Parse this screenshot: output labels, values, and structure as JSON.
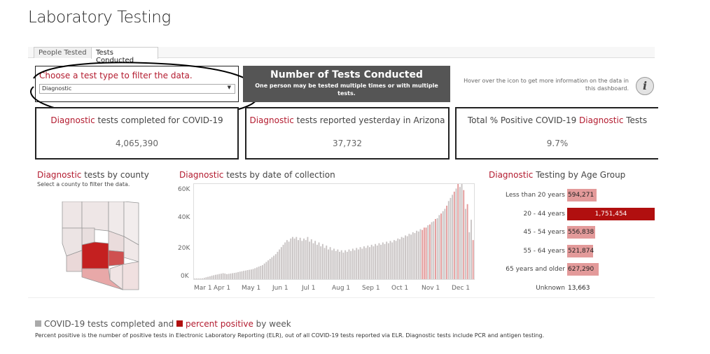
{
  "page": {
    "title": "Laboratory Testing"
  },
  "tabs": [
    {
      "label": "People Tested",
      "active": false
    },
    {
      "label": "Tests Conducted",
      "active": true
    }
  ],
  "filter": {
    "prompt": "Choose a test type to filter the data.",
    "selected": "Diagnostic"
  },
  "banner": {
    "heading": "Number of Tests Conducted",
    "subheading": "One person may be tested multiple times or with multiple tests."
  },
  "hover_note": "Hover over the icon to get more information on the data in this dashboard.",
  "info_icon": "i",
  "kpis": [
    {
      "prefix": "",
      "highlight": "Diagnostic",
      "suffix": " tests completed for COVID-19",
      "value": "4,065,390"
    },
    {
      "prefix": "",
      "highlight": "Diagnostic",
      "suffix": " tests reported yesterday in Arizona",
      "value": "37,732"
    },
    {
      "prefix": "Total % Positive COVID-19 ",
      "highlight": "Diagnostic",
      "suffix": " Tests",
      "value": "9.7%"
    }
  ],
  "county": {
    "title_highlight": "Diagnostic",
    "title_rest": " tests by county",
    "subtitle": "Select a county to filter the data."
  },
  "date_chart": {
    "title_highlight": "Diagnostic",
    "title_rest": " tests by date of collection",
    "y_ticks": [
      "60K",
      "40K",
      "20K",
      "0K"
    ],
    "x_ticks": [
      "Mar 1",
      "Apr 1",
      "May 1",
      "Jun 1",
      "Jul 1",
      "Aug 1",
      "Sep 1",
      "Oct 1",
      "Nov 1",
      "Dec 1"
    ]
  },
  "age_chart": {
    "title_highlight": "Diagnostic",
    "title_rest": " Testing by Age Group"
  },
  "legend": {
    "part1": "COVID-19 tests completed",
    "and": " and ",
    "part2": "percent positive",
    "part3": " by week"
  },
  "footnote": "Percent positive is the number of positive tests in Electronic Laboratory Reporting (ELR), out of all COVID-19 tests reported via ELR. Diagnostic tests include PCR and antigen testing.",
  "colors": {
    "accent": "#b31b2f",
    "dark_red": "#b10f0f",
    "light_red": "#e39a9a",
    "gray_bar": "#c9c4c4",
    "banner": "#555555"
  },
  "chart_data": [
    {
      "type": "bar",
      "title": "Diagnostic Testing by Age Group",
      "categories": [
        "Less than 20 years",
        "20 - 44 years",
        "45 - 54 years",
        "55 - 64 years",
        "65 years and older",
        "Unknown"
      ],
      "values": [
        594271,
        1751454,
        556838,
        521874,
        627290,
        13663
      ],
      "value_labels": [
        "594,271",
        "1,751,454",
        "556,838",
        "521,874",
        "627,290",
        "13,663"
      ]
    },
    {
      "type": "bar",
      "title": "Diagnostic tests by date of collection",
      "x_start": "Mar 1",
      "x_end": "Dec 1",
      "ylim": [
        0,
        60000
      ],
      "values": [
        100,
        150,
        200,
        300,
        500,
        800,
        1200,
        1500,
        1800,
        2200,
        2500,
        2800,
        3000,
        3300,
        3500,
        3800,
        3600,
        3200,
        3400,
        3600,
        3800,
        4000,
        4200,
        4500,
        4800,
        5000,
        5300,
        5500,
        5800,
        6000,
        6200,
        6500,
        7000,
        7500,
        8000,
        8500,
        9000,
        10000,
        11000,
        12000,
        13000,
        14000,
        15000,
        16000,
        17500,
        19000,
        20500,
        22000,
        23500,
        25000,
        24000,
        26000,
        27000,
        26000,
        27000,
        25000,
        26500,
        24500,
        26000,
        25000,
        27000,
        24000,
        25500,
        23000,
        24500,
        22000,
        23500,
        21000,
        22500,
        20000,
        21500,
        19000,
        20500,
        18500,
        19500,
        18000,
        19000,
        17500,
        18500,
        17000,
        18500,
        17500,
        19000,
        18000,
        19500,
        18500,
        20000,
        19000,
        20500,
        19500,
        21000,
        20000,
        21500,
        20500,
        22000,
        21000,
        22500,
        21500,
        23000,
        22000,
        23500,
        22500,
        24000,
        23000,
        24500,
        23500,
        25000,
        24500,
        26000,
        25500,
        27000,
        26500,
        28000,
        27500,
        29000,
        28500,
        30000,
        29500,
        31000,
        30500,
        32000,
        31500,
        33000,
        33000,
        34500,
        35000,
        36500,
        37000,
        38500,
        39000,
        41000,
        42000,
        43500,
        45000,
        47000,
        50000,
        52000,
        54000,
        56000,
        58000,
        61000,
        59000,
        62000,
        57000,
        45000,
        48000,
        30000,
        38000,
        25000
      ],
      "highlight_indices": [
        121,
        122,
        123,
        125,
        128,
        131,
        134,
        138,
        140,
        143,
        145,
        148,
        150
      ]
    }
  ]
}
